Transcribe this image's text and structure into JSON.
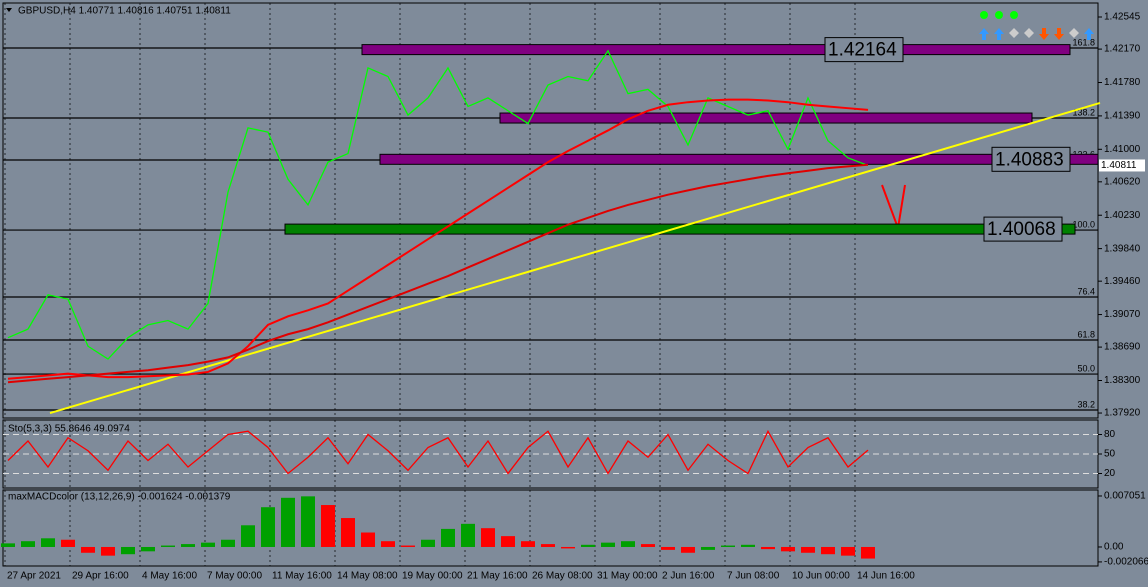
{
  "chart_data": [
    {
      "type": "line",
      "title": "GBPUSD,H4  1.40771 1.40816 1.40751 1.40811",
      "x": [
        0,
        1,
        2,
        3,
        4,
        5,
        6,
        7,
        8,
        9,
        10,
        11,
        12,
        13,
        14,
        15,
        16,
        17,
        18,
        19,
        20,
        21,
        22,
        23,
        24,
        25,
        26,
        27,
        28,
        29,
        30,
        31,
        32,
        33,
        34,
        35,
        36,
        37,
        38,
        39,
        40,
        41,
        42,
        43
      ],
      "series": [
        {
          "color": "#00ff00",
          "values": [
            1.388,
            1.389,
            1.393,
            1.3925,
            1.387,
            1.3855,
            1.388,
            1.3895,
            1.39,
            1.389,
            1.392,
            1.405,
            1.4125,
            1.412,
            1.4065,
            1.4035,
            1.4085,
            1.4095,
            1.4195,
            1.4185,
            1.414,
            1.416,
            1.4195,
            1.415,
            1.416,
            1.4145,
            1.413,
            1.4175,
            1.4185,
            1.418,
            1.4215,
            1.4165,
            1.417,
            1.415,
            1.4105,
            1.416,
            1.415,
            1.414,
            1.4145,
            1.41,
            1.416,
            1.411,
            1.409,
            1.40811
          ]
        },
        {
          "color": "#ff0000",
          "values": [
            1.3832,
            1.3834,
            1.3836,
            1.3838,
            1.3836,
            1.3834,
            1.3834,
            1.3835,
            1.3836,
            1.3837,
            1.384,
            1.385,
            1.387,
            1.3895,
            1.3905,
            1.3912,
            1.392,
            1.3935,
            1.395,
            1.3965,
            1.398,
            1.3995,
            1.401,
            1.4025,
            1.404,
            1.4055,
            1.407,
            1.4085,
            1.4098,
            1.411,
            1.4122,
            1.4135,
            1.4145,
            1.4152,
            1.4155,
            1.4157,
            1.4158,
            1.4158,
            1.4157,
            1.4155,
            1.4152,
            1.415,
            1.4148,
            1.4146
          ]
        },
        {
          "color": "#e00000",
          "values": [
            1.3828,
            1.383,
            1.3832,
            1.3834,
            1.3836,
            1.3838,
            1.384,
            1.3842,
            1.3845,
            1.3848,
            1.3852,
            1.3857,
            1.3866,
            1.3876,
            1.3884,
            1.389,
            1.3898,
            1.3907,
            1.3916,
            1.3925,
            1.3934,
            1.3943,
            1.3952,
            1.3962,
            1.3972,
            1.3982,
            1.3992,
            1.4002,
            1.4012,
            1.402,
            1.4028,
            1.4035,
            1.4041,
            1.4047,
            1.4052,
            1.4057,
            1.4061,
            1.4065,
            1.4069,
            1.4072,
            1.4075,
            1.4078,
            1.408,
            1.4082
          ]
        }
      ],
      "xlim": [
        -0.4,
        54.5
      ],
      "ylim": [
        1.37862,
        1.42685
      ],
      "yticks": [
        1.42545,
        {
          "value": 1.4217,
          "label": "1.42170"
        },
        {
          "value": 1.4178,
          "label": "1.41780"
        },
        {
          "value": 1.4139,
          "label": "1.41390"
        },
        {
          "value": 1.41,
          "label": "1.41000"
        },
        {
          "value": 1.4062,
          "label": "1.40620"
        },
        {
          "value": 1.4023,
          "label": "1.40230"
        },
        {
          "value": 1.3984,
          "label": "1.39840"
        },
        {
          "value": 1.3946,
          "label": "1.39460"
        },
        {
          "value": 1.3907,
          "label": "1.39070"
        },
        {
          "value": 1.3869,
          "label": "1.38690"
        },
        {
          "value": 1.383,
          "label": "1.38300"
        },
        {
          "value": 1.3792,
          "label": "1.37920"
        }
      ],
      "xticks": [
        {
          "value": -0.15,
          "label": "27 Apr 2021"
        },
        {
          "value": 3.1,
          "label": "29 Apr 16:00"
        },
        {
          "value": 6.6,
          "label": "4 May 16:00"
        },
        {
          "value": 9.85,
          "label": "7 May 00:00"
        },
        {
          "value": 13.1,
          "label": "11 May 16:00"
        },
        {
          "value": 16.35,
          "label": "14 May 08:00"
        },
        {
          "value": 19.6,
          "label": "19 May 00:00"
        },
        {
          "value": 22.85,
          "label": "21 May 16:00"
        },
        {
          "value": 26.1,
          "label": "26 May 08:00"
        },
        {
          "value": 29.35,
          "label": "31 May 00:00"
        },
        {
          "value": 32.6,
          "label": "2 Jun 16:00"
        },
        {
          "value": 35.85,
          "label": "7 Jun 08:00"
        },
        {
          "value": 39.1,
          "label": "10 Jun 00:00"
        },
        {
          "value": 42.35,
          "label": "14 Jun 16:00"
        }
      ],
      "grid": true,
      "last": 1.40811,
      "fib_levels": [
        {
          "value": 1.42183,
          "label": "161.8"
        },
        {
          "value": 1.41365,
          "label": "138.2"
        },
        {
          "value": 1.40875,
          "label": "123.6"
        },
        {
          "value": 1.40057,
          "label": "100.0"
        },
        {
          "value": 1.39275,
          "label": "76.4"
        },
        {
          "value": 1.38773,
          "label": "61.8"
        },
        {
          "value": 1.38375,
          "label": "50.0"
        },
        {
          "value": 1.37955,
          "label": "38.2"
        }
      ],
      "zones": [
        {
          "value": 1.42164,
          "from": 17.7,
          "to": 53.1,
          "color": "#800080"
        },
        {
          "value": 1.41365,
          "from": 24.6,
          "to": 51.2,
          "color": "#800080"
        },
        {
          "value": 1.40883,
          "from": 18.6,
          "to": 54.5,
          "color": "#800080"
        },
        {
          "value": 1.40068,
          "from": 13.85,
          "to": 53.35,
          "color": "#008000"
        }
      ],
      "trendline": {
        "x": [
          2.1,
          54.6
        ],
        "y": [
          1.3792,
          1.41541
        ],
        "color": "#ffff00"
      }
    },
    {
      "type": "line",
      "title": "Sto(5,3,3) 55.8646 49.0974",
      "color": "#ff0000",
      "values": [
        40,
        70,
        30,
        75,
        55,
        25,
        70,
        40,
        65,
        30,
        55,
        80,
        85,
        60,
        20,
        45,
        75,
        35,
        80,
        55,
        25,
        60,
        75,
        30,
        70,
        20,
        60,
        85,
        30,
        75,
        20,
        70,
        45,
        80,
        25,
        65,
        40,
        20,
        85,
        30,
        60,
        75,
        30,
        56
      ],
      "ylim": [
        0,
        100
      ],
      "yticks": [
        80,
        50,
        20
      ]
    },
    {
      "type": "bar",
      "title": "maxMACDcolor (13,12,26,9) -0.001624 -0.001379",
      "up_color": "#00a000",
      "down_color": "#ff0000",
      "values": [
        0.0005,
        0.0008,
        0.0012,
        0.001,
        -0.0008,
        -0.0012,
        -0.001,
        -0.0006,
        0.0002,
        0.0004,
        0.0006,
        0.001,
        0.003,
        0.0055,
        0.0068,
        0.007,
        0.0058,
        0.004,
        0.002,
        0.0008,
        0.0002,
        0.001,
        0.0025,
        0.0032,
        0.0026,
        0.0015,
        0.0008,
        0.0004,
        -0.0002,
        0.0003,
        0.0006,
        0.0008,
        0.0004,
        -0.0004,
        -0.0008,
        -0.0004,
        0.0002,
        0.0003,
        -0.0003,
        -0.0006,
        -0.0008,
        -0.001,
        -0.0012,
        -0.0016
      ],
      "ylim": [
        -0.00263,
        0.00774
      ],
      "yticks": [
        0.007051,
        {
          "value": 0,
          "label": "0.00"
        },
        -0.002066
      ]
    }
  ]
}
